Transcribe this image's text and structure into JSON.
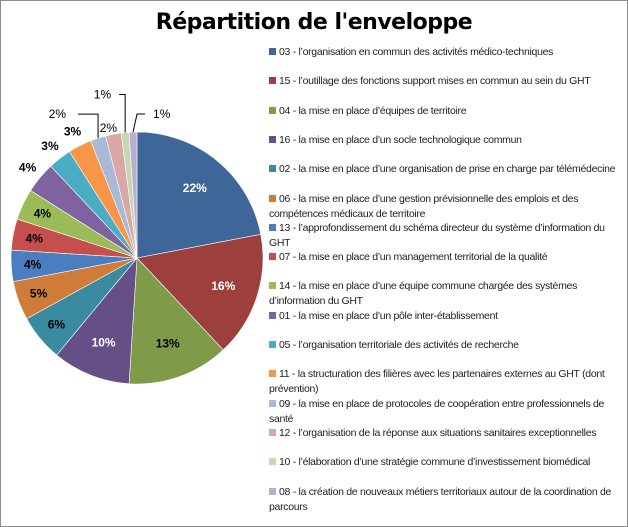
{
  "chart_data": {
    "type": "pie",
    "title": "Répartition de l'enveloppe",
    "legend_position": "right",
    "slices": [
      {
        "label": "03 - l’organisation en commun des activités médico-techniques",
        "value": 22,
        "display": "22%",
        "color": "#3f6699"
      },
      {
        "label": "15 - l’outillage des fonctions support mises en commun au sein du GHT",
        "value": 16,
        "display": "16%",
        "color": "#9c3f3d"
      },
      {
        "label": "04 - la mise en place d’équipes de territoire",
        "value": 13,
        "display": "13%",
        "color": "#7f9a48"
      },
      {
        "label": "16 - la mise en place d’un socle technologique commun",
        "value": 10,
        "display": "10%",
        "color": "#664f86"
      },
      {
        "label": "02 - la mise en place d’une organisation de prise en charge par télémédecine",
        "value": 6,
        "display": "6%",
        "color": "#3a8aa0"
      },
      {
        "label": "06 - la mise en place d’une gestion prévisionnelle des emplois et des compétences médicaux de territoire",
        "value": 5,
        "display": "5%",
        "color": "#cf7c3b"
      },
      {
        "label": "13 - l’approfondissement du schéma directeur du système d’information du GHT",
        "value": 4,
        "display": "4%",
        "color": "#4a7ec0"
      },
      {
        "label": "07 - la mise en place d’un management territorial de la qualité",
        "value": 4,
        "display": "4%",
        "color": "#c44f4c"
      },
      {
        "label": "14 - la mise en place d’une équipe commune chargée des systèmes d’information du GHT",
        "value": 4,
        "display": "4%",
        "color": "#9bbb59"
      },
      {
        "label": "01 - la mise en place d’un pôle inter-établissement",
        "value": 4,
        "display": "4%",
        "color": "#7f63a0"
      },
      {
        "label": "05 - l’organisation territoriale des activités de recherche",
        "value": 3,
        "display": "3%",
        "color": "#4bacc6"
      },
      {
        "label": "11 - la structuration des filières avec les partenaires externes au GHT (dont prévention)",
        "value": 3,
        "display": "3%",
        "color": "#f79646"
      },
      {
        "label": "09 - la mise en place de protocoles de coopération entre professionnels de santé",
        "value": 2,
        "display": "2%",
        "color": "#a9b9d8"
      },
      {
        "label": "12 - l’organisation de la réponse aux situations sanitaires exceptionnelles",
        "value": 2,
        "display": "2%",
        "color": "#d9a7a6"
      },
      {
        "label": "10 - l’élaboration d’une stratégie commune d’investissement biomédical",
        "value": 1,
        "display": "1%",
        "color": "#c7d8ae"
      },
      {
        "label": "08 - la création de nouveaux métiers territoriaux autour de la coordination de parcours",
        "value": 1,
        "display": "1%",
        "color": "#b8aed0"
      }
    ]
  }
}
